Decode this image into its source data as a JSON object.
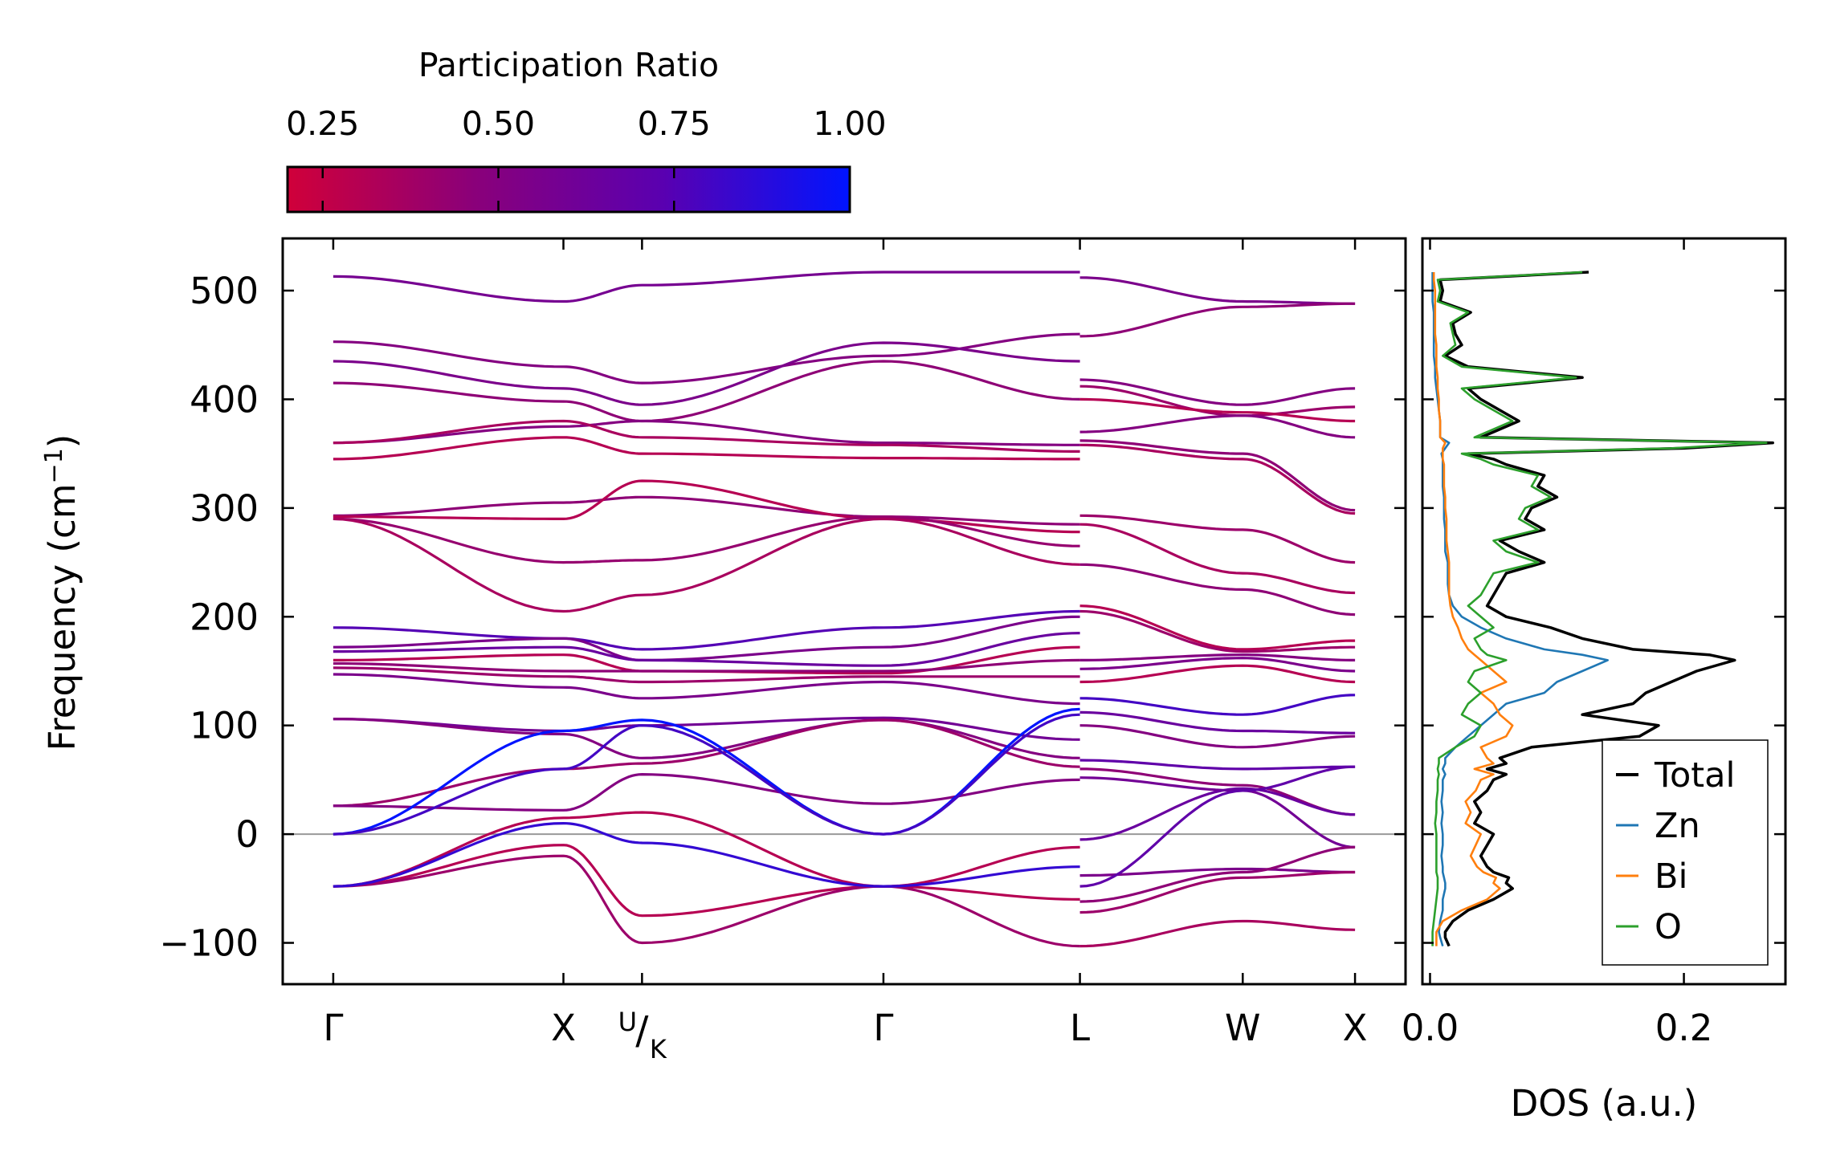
{
  "chart_data": [
    {
      "type": "line",
      "title": "",
      "xlabel": "",
      "ylabel": "Frequency (cm",
      "ylabel_sup": "−1",
      "ylabel_close": ")",
      "ylim": [
        -138,
        548
      ],
      "yticks": [
        -100,
        0,
        100,
        200,
        300,
        400,
        500
      ],
      "ytick_labels": [
        "−100",
        "0",
        "100",
        "200",
        "300",
        "400",
        "500"
      ],
      "xlim": [
        0,
        1
      ],
      "xticks": [
        0.045,
        0.25,
        0.32,
        0.535,
        0.71,
        0.855,
        0.955
      ],
      "xtick_labels": [
        "Γ",
        "X",
        "",
        "Γ",
        "L",
        "W",
        "X"
      ],
      "special_label": {
        "top": "U",
        "bottom": "K"
      },
      "colorbar": {
        "title": "Participation Ratio",
        "range": [
          0.2,
          1.0
        ],
        "ticks": [
          0.25,
          0.5,
          0.75,
          1.0
        ],
        "tick_labels": [
          "0.25",
          "0.50",
          "0.75",
          "1.00"
        ],
        "colors": [
          "#d0003a",
          "#8a007a",
          "#5a00b0",
          "#0014ff"
        ]
      },
      "zero_line": 0,
      "segments": [
        {
          "x": [
            0.045,
            0.25,
            0.32,
            0.535,
            0.71
          ],
          "bands": [
            {
              "f": [
                513,
                490,
                505,
                517,
                517
              ],
              "p": 0.58
            },
            {
              "f": [
                453,
                430,
                415,
                440,
                460
              ],
              "p": 0.5
            },
            {
              "f": [
                435,
                410,
                395,
                452,
                435
              ],
              "p": 0.55
            },
            {
              "f": [
                415,
                398,
                380,
                435,
                400
              ],
              "p": 0.45
            },
            {
              "f": [
                360,
                375,
                380,
                360,
                358
              ],
              "p": 0.5
            },
            {
              "f": [
                360,
                380,
                365,
                358,
                352
              ],
              "p": 0.35
            },
            {
              "f": [
                345,
                365,
                350,
                346,
                345
              ],
              "p": 0.3
            },
            {
              "f": [
                293,
                305,
                310,
                292,
                285
              ],
              "p": 0.45
            },
            {
              "f": [
                292,
                290,
                325,
                290,
                278
              ],
              "p": 0.3
            },
            {
              "f": [
                290,
                250,
                252,
                292,
                265
              ],
              "p": 0.42
            },
            {
              "f": [
                290,
                205,
                220,
                290,
                248
              ],
              "p": 0.35
            },
            {
              "f": [
                190,
                180,
                170,
                190,
                205
              ],
              "p": 0.75
            },
            {
              "f": [
                172,
                180,
                160,
                172,
                200
              ],
              "p": 0.55
            },
            {
              "f": [
                168,
                172,
                160,
                155,
                185
              ],
              "p": 0.65
            },
            {
              "f": [
                160,
                165,
                150,
                148,
                172
              ],
              "p": 0.3
            },
            {
              "f": [
                157,
                150,
                150,
                150,
                160
              ],
              "p": 0.45
            },
            {
              "f": [
                153,
                145,
                140,
                145,
                145
              ],
              "p": 0.4
            },
            {
              "f": [
                147,
                135,
                125,
                140,
                120
              ],
              "p": 0.55
            },
            {
              "f": [
                106,
                95,
                100,
                107,
                87
              ],
              "p": 0.6
            },
            {
              "f": [
                106,
                92,
                70,
                105,
                70
              ],
              "p": 0.5
            },
            {
              "f": [
                26,
                60,
                65,
                105,
                62
              ],
              "p": 0.4
            },
            {
              "f": [
                26,
                22,
                55,
                28,
                50
              ],
              "p": 0.5
            },
            {
              "f": [
                0,
                95,
                105,
                0,
                115
              ],
              "p": 1.0
            },
            {
              "f": [
                0,
                60,
                100,
                0,
                110
              ],
              "p": 0.8
            },
            {
              "f": [
                -48,
                15,
                20,
                -48,
                -12
              ],
              "p": 0.3
            },
            {
              "f": [
                -48,
                -10,
                -75,
                -48,
                -60
              ],
              "p": 0.3
            },
            {
              "f": [
                -48,
                -20,
                -100,
                -48,
                -103
              ],
              "p": 0.4
            },
            {
              "f": [
                -48,
                10,
                -8,
                -48,
                -30
              ],
              "p": 0.85
            }
          ]
        },
        {
          "x": [
            0.71,
            0.855,
            0.955
          ],
          "bands": [
            {
              "f": [
                512,
                490,
                488
              ],
              "p": 0.55
            },
            {
              "f": [
                458,
                485,
                488
              ],
              "p": 0.45
            },
            {
              "f": [
                418,
                395,
                410
              ],
              "p": 0.5
            },
            {
              "f": [
                412,
                385,
                393
              ],
              "p": 0.4
            },
            {
              "f": [
                400,
                388,
                380
              ],
              "p": 0.3
            },
            {
              "f": [
                370,
                385,
                365
              ],
              "p": 0.5
            },
            {
              "f": [
                362,
                350,
                298
              ],
              "p": 0.45
            },
            {
              "f": [
                358,
                345,
                295
              ],
              "p": 0.35
            },
            {
              "f": [
                293,
                280,
                250
              ],
              "p": 0.4
            },
            {
              "f": [
                285,
                240,
                222
              ],
              "p": 0.35
            },
            {
              "f": [
                248,
                225,
                202
              ],
              "p": 0.45
            },
            {
              "f": [
                210,
                170,
                178
              ],
              "p": 0.3
            },
            {
              "f": [
                205,
                168,
                172
              ],
              "p": 0.4
            },
            {
              "f": [
                160,
                165,
                160
              ],
              "p": 0.5
            },
            {
              "f": [
                152,
                162,
                150
              ],
              "p": 0.55
            },
            {
              "f": [
                140,
                155,
                140
              ],
              "p": 0.3
            },
            {
              "f": [
                125,
                110,
                128
              ],
              "p": 0.8
            },
            {
              "f": [
                112,
                95,
                93
              ],
              "p": 0.65
            },
            {
              "f": [
                100,
                80,
                90
              ],
              "p": 0.5
            },
            {
              "f": [
                68,
                60,
                62
              ],
              "p": 0.7
            },
            {
              "f": [
                60,
                45,
                18
              ],
              "p": 0.45
            },
            {
              "f": [
                52,
                40,
                -12
              ],
              "p": 0.6
            },
            {
              "f": [
                -5,
                42,
                18
              ],
              "p": 0.65
            },
            {
              "f": [
                -38,
                -32,
                -35
              ],
              "p": 0.55
            },
            {
              "f": [
                -48,
                40,
                62
              ],
              "p": 0.7
            },
            {
              "f": [
                -62,
                -35,
                -12
              ],
              "p": 0.45
            },
            {
              "f": [
                -72,
                -40,
                -35
              ],
              "p": 0.4
            },
            {
              "f": [
                -103,
                -80,
                -88
              ],
              "p": 0.35
            }
          ]
        }
      ]
    },
    {
      "type": "line",
      "title": "",
      "xlabel": "DOS (a.u.)",
      "ylabel": "",
      "xlim": [
        -0.006,
        0.28
      ],
      "xticks": [
        0.0,
        0.2
      ],
      "xtick_labels": [
        "0.0",
        "0.2"
      ],
      "ylim": [
        -138,
        548
      ],
      "legend_position": "lower-right",
      "freq": [
        -103,
        -95,
        -90,
        -80,
        -70,
        -60,
        -50,
        -45,
        -40,
        -35,
        -30,
        -20,
        -10,
        0,
        10,
        20,
        30,
        40,
        50,
        55,
        60,
        65,
        70,
        80,
        90,
        100,
        110,
        120,
        130,
        140,
        150,
        160,
        165,
        170,
        180,
        190,
        200,
        210,
        220,
        230,
        240,
        250,
        260,
        270,
        280,
        290,
        300,
        310,
        320,
        330,
        340,
        345,
        350,
        355,
        360,
        365,
        370,
        380,
        390,
        400,
        410,
        420,
        430,
        440,
        450,
        460,
        470,
        480,
        490,
        500,
        510,
        517
      ],
      "series": [
        {
          "name": "Total",
          "color": "#000000",
          "values": [
            0.015,
            0.012,
            0.012,
            0.018,
            0.03,
            0.05,
            0.065,
            0.06,
            0.062,
            0.05,
            0.045,
            0.04,
            0.045,
            0.05,
            0.035,
            0.04,
            0.035,
            0.045,
            0.05,
            0.06,
            0.045,
            0.06,
            0.055,
            0.08,
            0.165,
            0.18,
            0.12,
            0.16,
            0.17,
            0.19,
            0.21,
            0.24,
            0.22,
            0.16,
            0.12,
            0.095,
            0.06,
            0.045,
            0.05,
            0.055,
            0.06,
            0.09,
            0.07,
            0.055,
            0.09,
            0.075,
            0.08,
            0.1,
            0.085,
            0.09,
            0.06,
            0.05,
            0.03,
            0.2,
            0.27,
            0.04,
            0.05,
            0.07,
            0.055,
            0.04,
            0.03,
            0.12,
            0.03,
            0.012,
            0.025,
            0.02,
            0.018,
            0.032,
            0.008,
            0.01,
            0.008,
            0.125
          ]
        },
        {
          "name": "Zn",
          "color": "#1f77b4",
          "values": [
            0.01,
            0.008,
            0.007,
            0.008,
            0.01,
            0.01,
            0.012,
            0.012,
            0.011,
            0.01,
            0.01,
            0.009,
            0.01,
            0.01,
            0.009,
            0.01,
            0.009,
            0.01,
            0.01,
            0.012,
            0.01,
            0.012,
            0.012,
            0.02,
            0.03,
            0.04,
            0.05,
            0.06,
            0.09,
            0.1,
            0.12,
            0.14,
            0.12,
            0.09,
            0.06,
            0.04,
            0.025,
            0.018,
            0.015,
            0.014,
            0.014,
            0.014,
            0.012,
            0.012,
            0.012,
            0.011,
            0.011,
            0.011,
            0.01,
            0.01,
            0.01,
            0.01,
            0.009,
            0.012,
            0.015,
            0.008,
            0.008,
            0.008,
            0.007,
            0.006,
            0.005,
            0.004,
            0.004,
            0.003,
            0.003,
            0.003,
            0.003,
            0.003,
            0.002,
            0.002,
            0.002,
            0.002
          ]
        },
        {
          "name": "Bi",
          "color": "#ff7f0e",
          "values": [
            0.005,
            0.005,
            0.005,
            0.01,
            0.025,
            0.045,
            0.055,
            0.05,
            0.052,
            0.042,
            0.037,
            0.032,
            0.036,
            0.04,
            0.028,
            0.032,
            0.028,
            0.036,
            0.04,
            0.05,
            0.035,
            0.05,
            0.045,
            0.04,
            0.06,
            0.065,
            0.055,
            0.05,
            0.04,
            0.06,
            0.05,
            0.04,
            0.035,
            0.03,
            0.025,
            0.022,
            0.018,
            0.016,
            0.015,
            0.015,
            0.015,
            0.015,
            0.014,
            0.013,
            0.013,
            0.013,
            0.012,
            0.012,
            0.011,
            0.011,
            0.011,
            0.01,
            0.01,
            0.01,
            0.012,
            0.008,
            0.008,
            0.008,
            0.007,
            0.007,
            0.006,
            0.006,
            0.005,
            0.005,
            0.005,
            0.004,
            0.004,
            0.004,
            0.004,
            0.004,
            0.003,
            0.003
          ]
        },
        {
          "name": "O",
          "color": "#2ca02c",
          "values": [
            0.002,
            0.002,
            0.002,
            0.003,
            0.004,
            0.005,
            0.006,
            0.006,
            0.006,
            0.005,
            0.005,
            0.005,
            0.005,
            0.005,
            0.004,
            0.005,
            0.005,
            0.006,
            0.006,
            0.007,
            0.006,
            0.007,
            0.007,
            0.02,
            0.035,
            0.04,
            0.025,
            0.03,
            0.04,
            0.03,
            0.035,
            0.06,
            0.045,
            0.04,
            0.035,
            0.05,
            0.04,
            0.03,
            0.04,
            0.045,
            0.05,
            0.085,
            0.06,
            0.05,
            0.085,
            0.07,
            0.075,
            0.095,
            0.08,
            0.085,
            0.05,
            0.04,
            0.025,
            0.19,
            0.265,
            0.035,
            0.045,
            0.065,
            0.05,
            0.035,
            0.025,
            0.115,
            0.025,
            0.01,
            0.02,
            0.018,
            0.016,
            0.03,
            0.006,
            0.008,
            0.006,
            0.12
          ]
        }
      ]
    }
  ]
}
